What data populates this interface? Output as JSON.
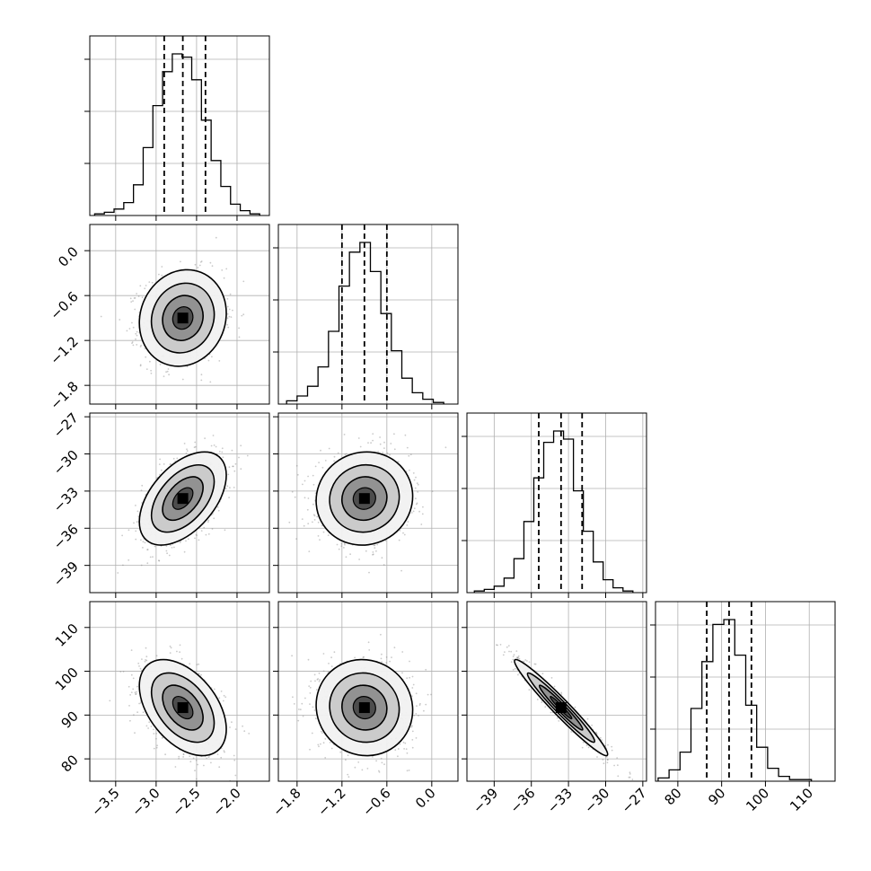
{
  "chart_data": {
    "type": "corner",
    "title": "",
    "colors": {
      "line": "#000000",
      "grid": "#b0b0b0",
      "points": "#8a8a8a"
    },
    "grid": true,
    "parameters": [
      {
        "label": "",
        "range": [
          -3.82,
          -1.6
        ],
        "ticks": [
          -3.5,
          -3.0,
          -2.5,
          -2.0
        ],
        "tick_labels": [
          "−3.5",
          "−3.0",
          "−2.5",
          "−2.0"
        ],
        "median": -2.67,
        "q16": -2.9,
        "q84": -2.39,
        "sigma": 0.25
      },
      {
        "label": "",
        "range": [
          -2.05,
          0.35
        ],
        "ticks": [
          -1.8,
          -1.2,
          -0.6,
          0.0
        ],
        "tick_labels": [
          "−1.8",
          "−1.2",
          "−0.6",
          "0.0"
        ],
        "median": -0.9,
        "q16": -1.2,
        "q84": -0.6,
        "sigma": 0.3
      },
      {
        "label": "",
        "range": [
          -41.2,
          -26.7
        ],
        "ticks": [
          -39,
          -36,
          -33,
          -30,
          -27
        ],
        "tick_labels": [
          "−39",
          "−36",
          "−33",
          "−30",
          "−27"
        ],
        "median": -33.6,
        "q16": -35.4,
        "q84": -31.9,
        "sigma": 1.75
      },
      {
        "label": "",
        "range": [
          74.9,
          115.9
        ],
        "ticks": [
          80,
          90,
          100,
          110
        ],
        "tick_labels": [
          "80",
          "90",
          "100",
          "110"
        ],
        "median": 91.7,
        "q16": 86.6,
        "q84": 96.8,
        "sigma": 5.1
      }
    ],
    "histograms": [
      {
        "bin_edges": [
          -3.76,
          -3.64,
          -3.52,
          -3.4,
          -3.28,
          -3.16,
          -3.04,
          -2.92,
          -2.8,
          -2.68,
          -2.56,
          -2.44,
          -2.32,
          -2.2,
          -2.08,
          -1.96,
          -1.84,
          -1.72
        ],
        "counts": [
          0.01,
          0.02,
          0.04,
          0.08,
          0.19,
          0.42,
          0.68,
          0.89,
          1.0,
          0.98,
          0.84,
          0.59,
          0.34,
          0.18,
          0.07,
          0.03,
          0.01
        ]
      },
      {
        "bin_edges": [
          -1.94,
          -1.8,
          -1.66,
          -1.52,
          -1.38,
          -1.24,
          -1.1,
          -0.96,
          -0.82,
          -0.68,
          -0.54,
          -0.4,
          -0.26,
          -0.12,
          0.02,
          0.16
        ],
        "counts": [
          0.02,
          0.05,
          0.11,
          0.23,
          0.45,
          0.73,
          0.94,
          1.0,
          0.82,
          0.56,
          0.33,
          0.16,
          0.07,
          0.03,
          0.01
        ]
      },
      {
        "bin_edges": [
          -40.6,
          -39.8,
          -39.0,
          -38.2,
          -37.4,
          -36.6,
          -35.8,
          -35.0,
          -34.2,
          -33.4,
          -32.6,
          -31.8,
          -31.0,
          -30.2,
          -29.4,
          -28.6,
          -27.8
        ],
        "counts": [
          0.01,
          0.02,
          0.04,
          0.09,
          0.21,
          0.44,
          0.71,
          0.93,
          1.0,
          0.95,
          0.63,
          0.38,
          0.19,
          0.08,
          0.03,
          0.01
        ]
      },
      {
        "bin_edges": [
          75.5,
          78.0,
          80.5,
          83.0,
          85.5,
          88.0,
          90.5,
          93.0,
          95.5,
          98.0,
          100.5,
          103.0,
          105.5,
          108.0,
          110.5
        ],
        "counts": [
          0.02,
          0.07,
          0.18,
          0.45,
          0.74,
          0.97,
          1.0,
          0.78,
          0.47,
          0.21,
          0.08,
          0.03,
          0.01,
          0.01
        ]
      }
    ],
    "pairs": [
      {
        "x": 0,
        "y": 1,
        "corr": 0.1
      },
      {
        "x": 0,
        "y": 2,
        "corr": 0.5
      },
      {
        "x": 1,
        "y": 2,
        "corr": 0.05
      },
      {
        "x": 0,
        "y": 3,
        "corr": -0.45
      },
      {
        "x": 1,
        "y": 3,
        "corr": -0.05
      },
      {
        "x": 2,
        "y": 3,
        "corr": -0.97
      }
    ]
  }
}
